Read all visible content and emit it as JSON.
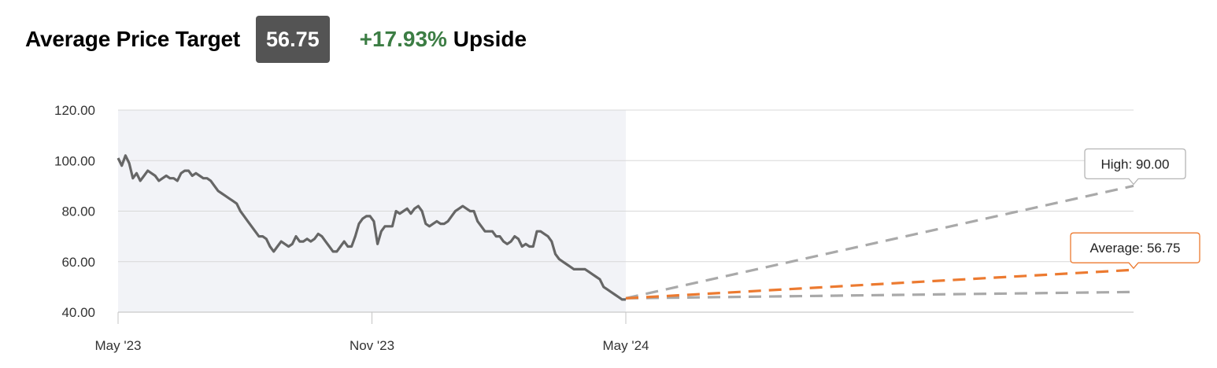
{
  "header": {
    "title": "Average Price Target",
    "badge_value": "56.75",
    "upside_percent": "+17.93%",
    "upside_word": "Upside"
  },
  "colors": {
    "badge_bg": "#545454",
    "upside_green": "#3c7d44",
    "history_line": "#666666",
    "history_shade": "#f2f3f7",
    "average_line": "#ec7a30",
    "high_low_line": "#a9a9a9"
  },
  "chart_data": {
    "type": "line",
    "ylim": [
      40,
      120
    ],
    "y_ticks": [
      "40.00",
      "60.00",
      "80.00",
      "100.00",
      "120.00"
    ],
    "y_tick_values": [
      40,
      60,
      80,
      100,
      120
    ],
    "x_ticks": [
      "May '23",
      "Nov '23",
      "May '24"
    ],
    "x_tick_values": [
      "2023-05",
      "2023-11",
      "2024-05"
    ],
    "grid": true,
    "x_range": [
      "2023-05",
      "2025-05"
    ],
    "history": {
      "x_start": "2023-05",
      "x_end": "2024-05",
      "values": [
        101,
        98,
        102,
        99,
        93,
        95,
        92,
        94,
        96,
        95,
        94,
        92,
        93,
        94,
        93,
        93,
        92,
        95,
        96,
        96,
        94,
        95,
        94,
        93,
        93,
        92,
        90,
        88,
        87,
        86,
        85,
        84,
        83,
        80,
        78,
        76,
        74,
        72,
        70,
        70,
        69,
        66,
        64,
        66,
        68,
        67,
        66,
        67,
        70,
        68,
        68,
        69,
        68,
        69,
        71,
        70,
        68,
        66,
        64,
        64,
        66,
        68,
        66,
        66,
        70,
        75,
        77,
        78,
        78,
        76,
        67,
        72,
        74,
        74,
        74,
        80,
        79,
        80,
        81,
        79,
        81,
        82,
        80,
        75,
        74,
        75,
        76,
        75,
        75,
        76,
        78,
        80,
        81,
        82,
        81,
        80,
        80,
        76,
        74,
        72,
        72,
        72,
        70,
        70,
        68,
        67,
        68,
        70,
        69,
        66,
        67,
        66,
        66,
        72,
        72,
        71,
        70,
        68,
        63,
        61,
        60,
        59,
        58,
        57,
        57,
        57,
        57,
        56,
        55,
        54,
        53,
        50,
        49,
        48,
        47,
        46,
        45,
        45
      ]
    },
    "forecast": {
      "x_start": "2024-05",
      "x_end": "2025-05",
      "start_value": 45.5,
      "series": [
        {
          "name": "High",
          "end_value": 90.0,
          "label": "High: 90.00"
        },
        {
          "name": "Average",
          "end_value": 56.75,
          "label": "Average: 56.75"
        },
        {
          "name": "Low",
          "end_value": 48.0,
          "label": ""
        }
      ]
    }
  }
}
